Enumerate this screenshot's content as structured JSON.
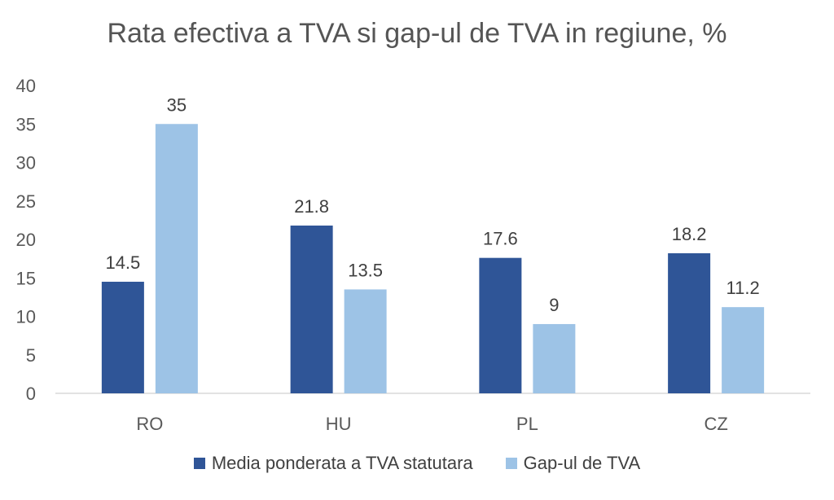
{
  "chart_data": {
    "type": "bar",
    "title": "Rata efectiva a TVA si gap-ul de TVA in regiune, %",
    "categories": [
      "RO",
      "HU",
      "PL",
      "CZ"
    ],
    "series": [
      {
        "name": "Media ponderata a TVA statutara",
        "values": [
          14.5,
          21.8,
          17.6,
          18.2
        ],
        "color": "#2F5597"
      },
      {
        "name": "Gap-ul de TVA",
        "values": [
          35,
          13.5,
          9,
          11.2
        ],
        "color": "#9DC3E6"
      }
    ],
    "ylim": [
      0,
      40
    ],
    "yticks": [
      0,
      5,
      10,
      15,
      20,
      25,
      30,
      35,
      40
    ],
    "grid": false,
    "legend": "bottom"
  }
}
